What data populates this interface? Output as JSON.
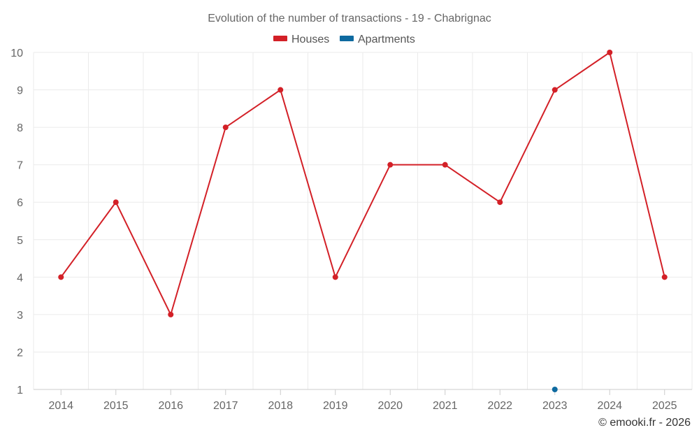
{
  "chart_data": {
    "type": "line",
    "title": "Evolution of the number of transactions - 19 - Chabrignac",
    "categories": [
      "2014",
      "2015",
      "2016",
      "2017",
      "2018",
      "2019",
      "2020",
      "2021",
      "2022",
      "2023",
      "2024",
      "2025"
    ],
    "series": [
      {
        "name": "Houses",
        "color": "#d32027",
        "values": [
          4,
          6,
          3,
          8,
          9,
          4,
          7,
          7,
          6,
          9,
          10,
          4
        ]
      },
      {
        "name": "Apartments",
        "color": "#0e6aa0",
        "values": [
          null,
          null,
          null,
          null,
          null,
          null,
          null,
          null,
          null,
          1,
          null,
          null
        ]
      }
    ],
    "ylim": [
      1,
      10
    ],
    "yticks": [
      "1",
      "2",
      "3",
      "4",
      "5",
      "6",
      "7",
      "8",
      "9",
      "10"
    ],
    "xlabel": "",
    "ylabel": "",
    "grid": true,
    "legend": "top-center"
  },
  "credit": "© emooki.fr - 2026"
}
